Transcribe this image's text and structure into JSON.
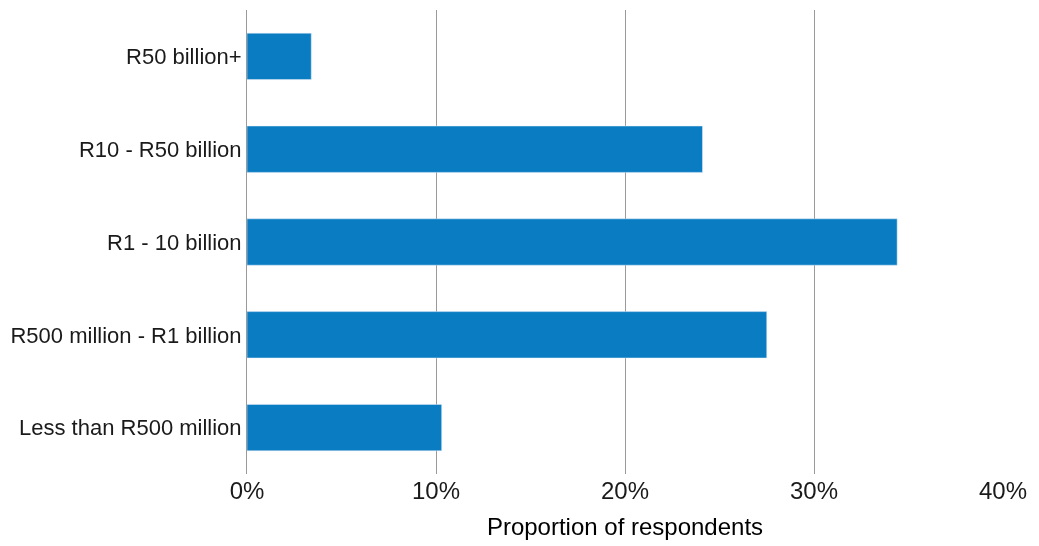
{
  "chart_data": {
    "type": "bar",
    "orientation": "horizontal",
    "xlabel": "Proportion of respondents",
    "categories": [
      "R50 billion+",
      "R10 - R50 billion",
      "R1 - 10 billion",
      "R500 million - R1 billion",
      "Less than R500 million"
    ],
    "values": [
      3.4,
      24.1,
      34.4,
      27.5,
      10.3
    ],
    "color": "#0a7dc2",
    "xlim": [
      0,
      40
    ],
    "xticks": [
      {
        "value": 0,
        "label": "0%"
      },
      {
        "value": 10,
        "label": "10%"
      },
      {
        "value": 20,
        "label": "20%"
      },
      {
        "value": 30,
        "label": "30%"
      },
      {
        "value": 40,
        "label": "40%"
      }
    ],
    "grid": "x"
  }
}
